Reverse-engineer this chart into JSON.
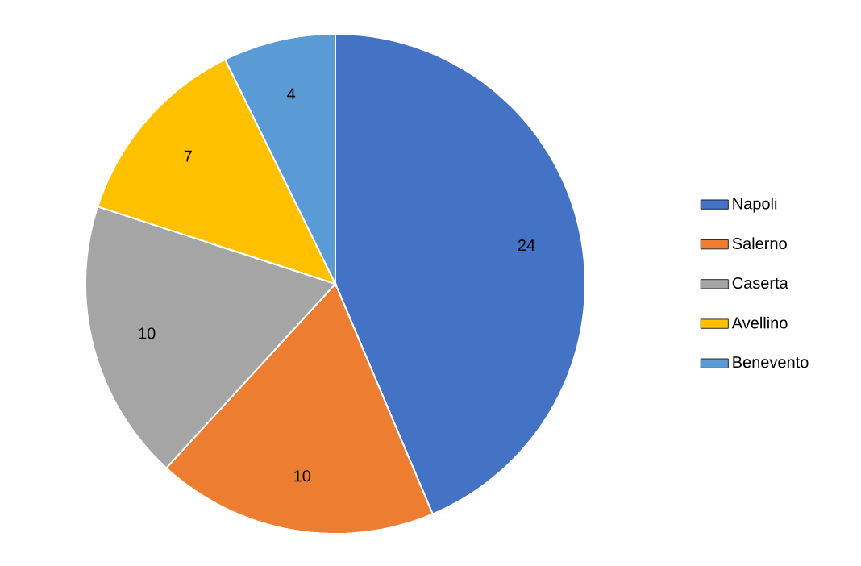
{
  "chart_data": {
    "type": "pie",
    "categories": [
      "Napoli",
      "Salerno",
      "Caserta",
      "Avellino",
      "Benevento"
    ],
    "values": [
      24,
      10,
      10,
      7,
      4
    ],
    "colors": [
      "#4472c4",
      "#ed7d31",
      "#a5a5a5",
      "#ffc000",
      "#5b9bd5"
    ],
    "data_labels": true,
    "legend": "right"
  }
}
